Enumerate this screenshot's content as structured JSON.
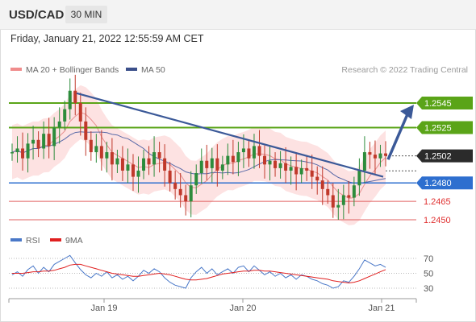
{
  "header": {
    "symbol": "USD/CAD",
    "timeframe": "30 MIN"
  },
  "datetime": "Friday, January 21, 2022 12:55:59 AM CET",
  "legend": {
    "ma_bb": "MA 20 + Bollinger Bands",
    "ma50": "MA 50",
    "rsi": "RSI",
    "ma9": "9MA"
  },
  "copyright": "Research © 2022 Trading Central",
  "colors": {
    "resistance": "#5aa418",
    "support": "#2e6fcf",
    "minor_support": "#e06060",
    "current": "#2b2b2b",
    "bb_fill": "#fcd8d8",
    "ma20": "#e89090",
    "ma50": "#5a6aa8",
    "trend": "#3b5998",
    "up": "#2d8c3c",
    "down": "#c0392b",
    "rsi": "#4a78c8",
    "ma9": "#e02020"
  },
  "chart_data": [
    {
      "type": "candlestick",
      "title": "USD/CAD 30 MIN",
      "x_ticks": [
        "Jan 19",
        "Jan 20",
        "Jan 21"
      ],
      "price_levels": [
        {
          "label": "1.2545",
          "value": 1.2545,
          "kind": "resistance"
        },
        {
          "label": "1.2525",
          "value": 1.2525,
          "kind": "resistance"
        },
        {
          "label": "1.2502",
          "value": 1.2502,
          "kind": "current"
        },
        {
          "label": "1.2480",
          "value": 1.248,
          "kind": "support"
        },
        {
          "label": "1.2465",
          "value": 1.2465,
          "kind": "minor_support"
        },
        {
          "label": "1.2450",
          "value": 1.245,
          "kind": "minor_support"
        }
      ],
      "close_series": [
        1.2505,
        1.2508,
        1.25,
        1.2512,
        1.2515,
        1.2508,
        1.252,
        1.251,
        1.2525,
        1.253,
        1.254,
        1.2555,
        1.2545,
        1.253,
        1.2515,
        1.2505,
        1.251,
        1.25,
        1.2505,
        1.2495,
        1.25,
        1.249,
        1.2495,
        1.2485,
        1.249,
        1.25,
        1.2495,
        1.2505,
        1.25,
        1.249,
        1.248,
        1.2475,
        1.247,
        1.2465,
        1.2478,
        1.2488,
        1.2498,
        1.2492,
        1.25,
        1.249,
        1.2495,
        1.2502,
        1.2497,
        1.2505,
        1.2508,
        1.25,
        1.251,
        1.2502,
        1.2495,
        1.2498,
        1.2492,
        1.2496,
        1.249,
        1.2493,
        1.2487,
        1.2492,
        1.249,
        1.2485,
        1.2482,
        1.2475,
        1.247,
        1.246,
        1.2462,
        1.247,
        1.2468,
        1.2478,
        1.249,
        1.2505,
        1.2503,
        1.25,
        1.2504,
        1.2502
      ],
      "trendline": {
        "from": 1.2553,
        "to": 1.2485
      },
      "arrow_target": 1.2545,
      "y_range": [
        1.2445,
        1.2565
      ]
    },
    {
      "type": "line",
      "title": "RSI",
      "series": [
        {
          "name": "RSI",
          "values": [
            48,
            52,
            46,
            55,
            60,
            50,
            58,
            52,
            62,
            66,
            70,
            74,
            64,
            55,
            48,
            44,
            50,
            46,
            52,
            44,
            48,
            42,
            46,
            40,
            46,
            54,
            50,
            56,
            52,
            44,
            38,
            34,
            32,
            30,
            44,
            52,
            58,
            50,
            56,
            48,
            52,
            56,
            50,
            58,
            60,
            52,
            60,
            54,
            48,
            52,
            46,
            50,
            44,
            48,
            42,
            48,
            46,
            42,
            40,
            36,
            34,
            30,
            32,
            40,
            38,
            46,
            56,
            68,
            64,
            60,
            62,
            58
          ]
        },
        {
          "name": "9MA",
          "values": [
            50,
            50,
            50,
            51,
            52,
            52,
            53,
            53,
            54,
            56,
            58,
            61,
            62,
            62,
            60,
            58,
            56,
            54,
            52,
            50,
            49,
            48,
            47,
            46,
            46,
            47,
            48,
            49,
            50,
            49,
            48,
            46,
            44,
            42,
            41,
            41,
            42,
            43,
            45,
            47,
            49,
            50,
            51,
            52,
            53,
            53,
            54,
            54,
            53,
            53,
            52,
            51,
            50,
            49,
            48,
            47,
            46,
            45,
            44,
            43,
            42,
            40,
            39,
            38,
            37,
            38,
            40,
            43,
            46,
            49,
            52,
            55
          ]
        }
      ],
      "y_ticks": [
        70,
        50,
        30
      ],
      "y_range": [
        20,
        85
      ]
    }
  ]
}
